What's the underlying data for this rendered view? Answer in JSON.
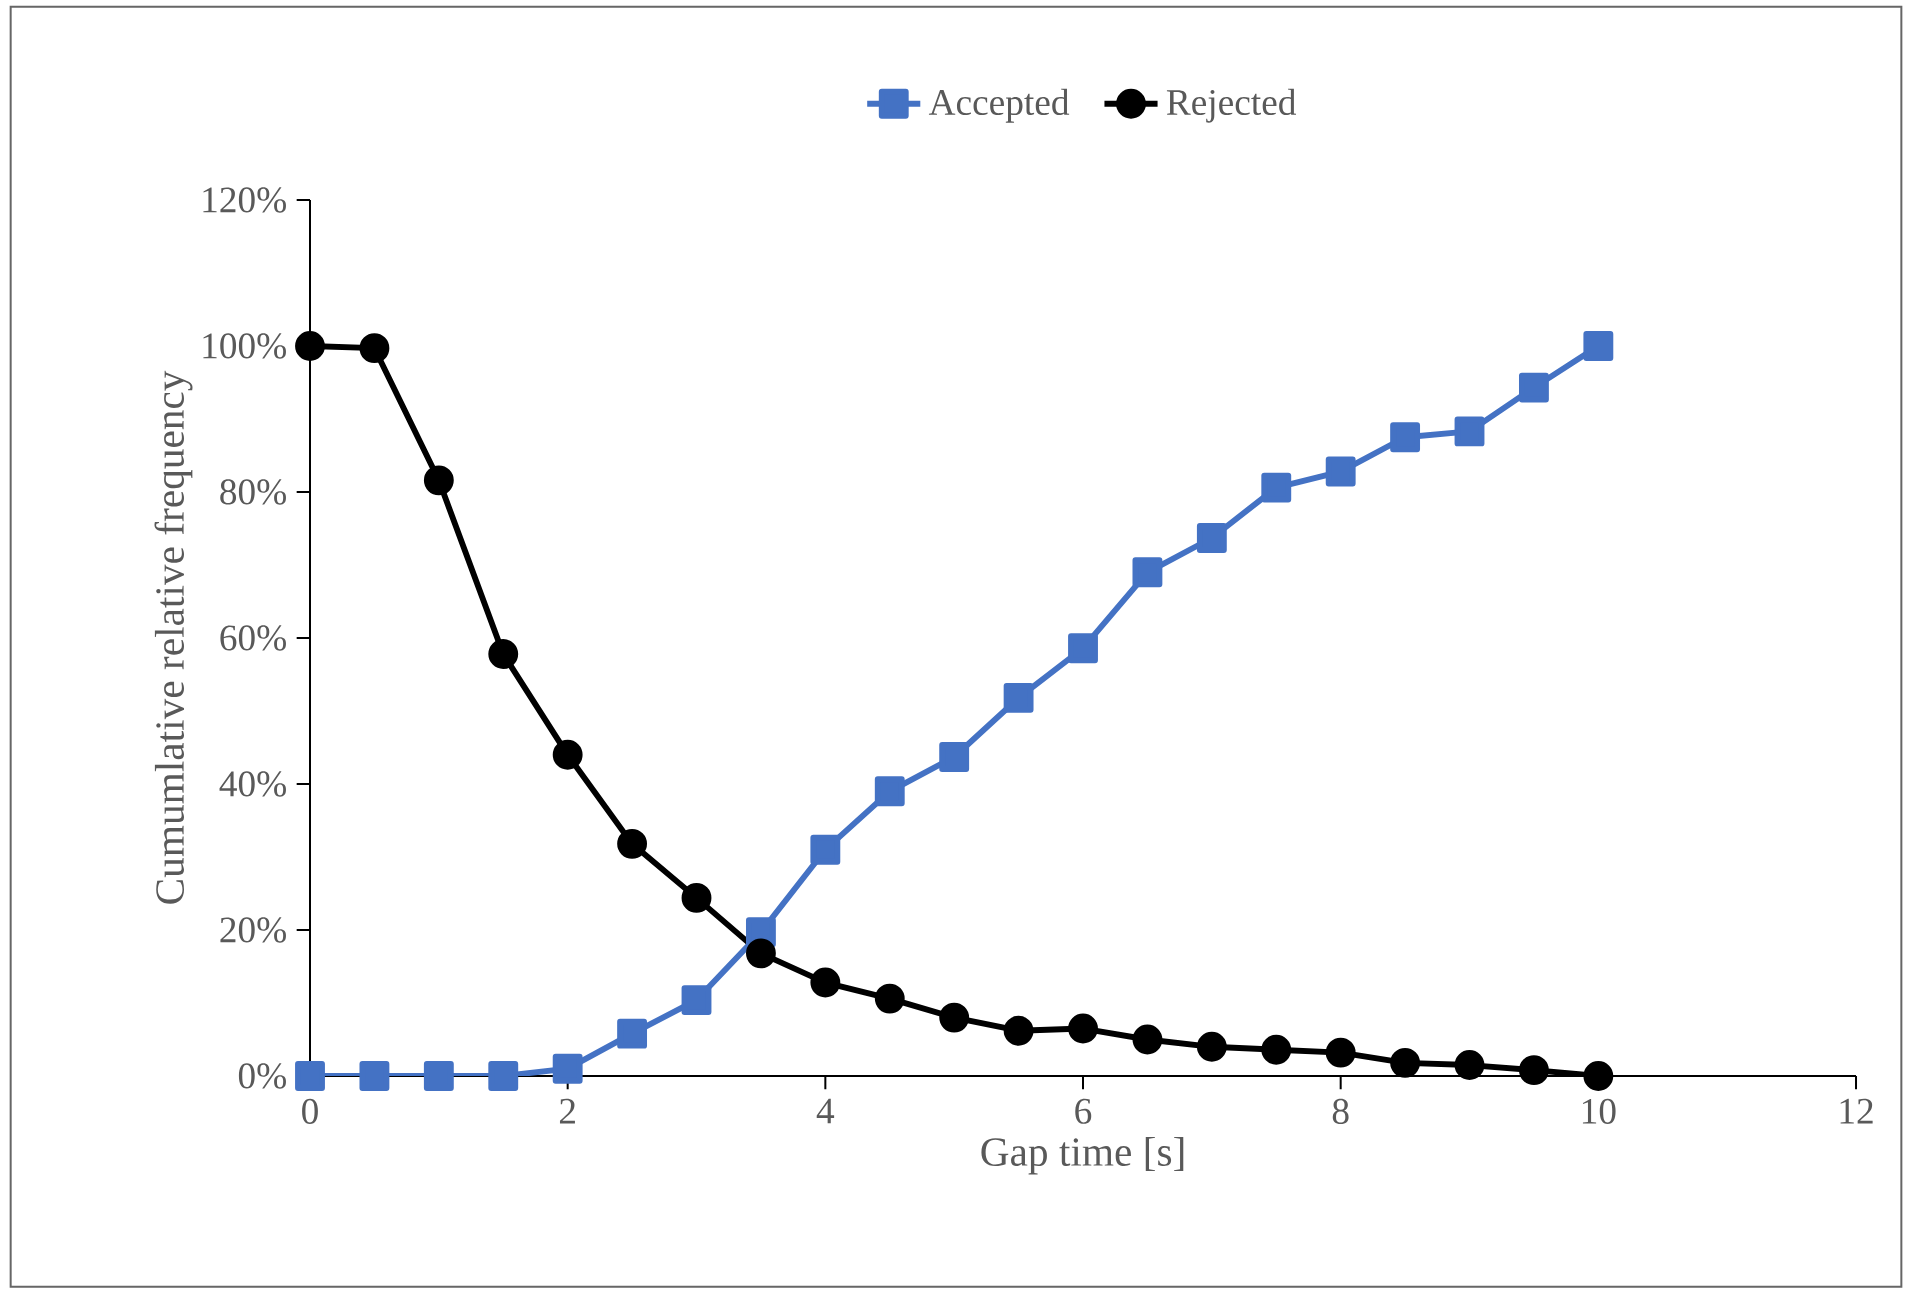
{
  "chart_data": {
    "type": "line",
    "xlabel": "Gap time [s]",
    "ylabel": "Cumumlative relative frequency",
    "x": [
      0,
      0.5,
      1,
      1.5,
      2,
      2.5,
      3,
      3.5,
      4,
      4.5,
      5,
      5.5,
      6,
      6.5,
      7,
      7.5,
      8,
      8.5,
      9,
      9.5,
      10
    ],
    "series": [
      {
        "name": "Accepted",
        "color": "#4472c4",
        "marker": "square",
        "values": [
          0,
          0,
          0,
          0,
          1,
          5.8,
          10.4,
          19.7,
          31,
          39,
          43.7,
          51.8,
          58.6,
          69,
          73.7,
          80.6,
          82.8,
          87.5,
          88.3,
          94.3,
          100
        ]
      },
      {
        "name": "Rejected",
        "color": "#000000",
        "marker": "circle",
        "values": [
          100,
          99.7,
          81.6,
          57.8,
          44,
          31.8,
          24.4,
          16.8,
          12.8,
          10.6,
          8,
          6.2,
          6.5,
          5,
          4,
          3.6,
          3.2,
          1.8,
          1.5,
          0.8,
          0
        ]
      }
    ],
    "xlim": [
      0,
      12
    ],
    "xticks": [
      0,
      2,
      4,
      6,
      8,
      10,
      12
    ],
    "ylim": [
      0,
      120
    ],
    "yticks": [
      {
        "value": 0,
        "label": "0%"
      },
      {
        "value": 20,
        "label": "20%"
      },
      {
        "value": 40,
        "label": "40%"
      },
      {
        "value": 60,
        "label": "60%"
      },
      {
        "value": 80,
        "label": "80%"
      },
      {
        "value": 100,
        "label": "100%"
      },
      {
        "value": 120,
        "label": "120%"
      }
    ],
    "legend": "top",
    "grid": false,
    "line_style": "solid"
  }
}
